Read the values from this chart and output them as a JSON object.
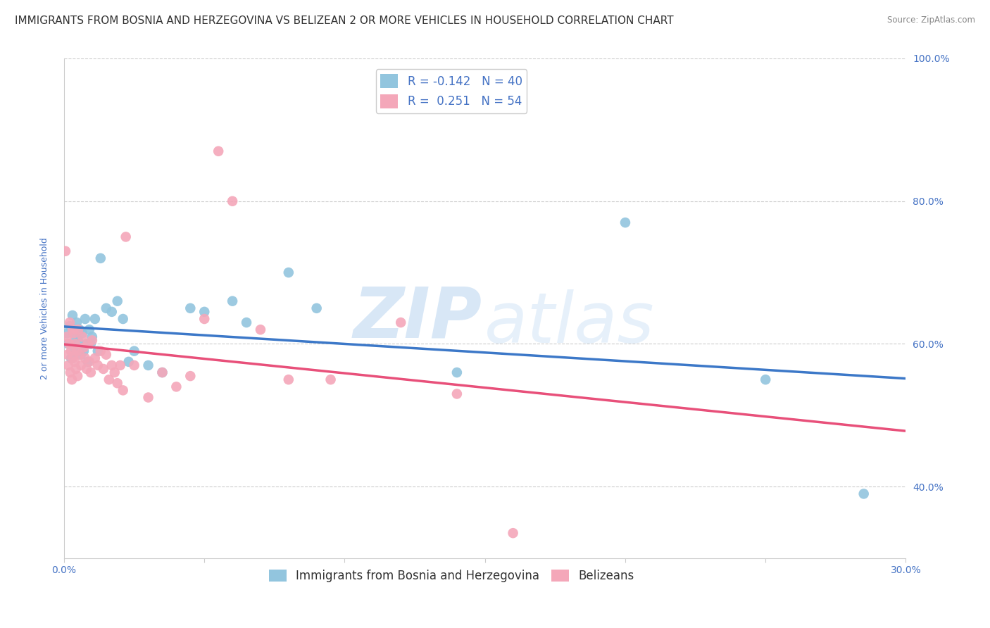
{
  "title": "IMMIGRANTS FROM BOSNIA AND HERZEGOVINA VS BELIZEAN 2 OR MORE VEHICLES IN HOUSEHOLD CORRELATION CHART",
  "source": "Source: ZipAtlas.com",
  "ylabel_label": "2 or more Vehicles in Household",
  "legend_bosnia_label": "Immigrants from Bosnia and Herzegovina",
  "legend_belize_label": "Belizeans",
  "R_bosnia": -0.142,
  "N_bosnia": 40,
  "R_belize": 0.251,
  "N_belize": 54,
  "blue_color": "#92c5de",
  "pink_color": "#f4a7b9",
  "blue_line_color": "#3c78c8",
  "pink_line_color": "#e8507a",
  "dashed_line_color": "#e8507a",
  "xmin": 0.0,
  "xmax": 30.0,
  "ymin": 30.0,
  "ymax": 100.0,
  "ytick_positions": [
    40.0,
    60.0,
    80.0,
    100.0
  ],
  "xtick_positions": [
    0.0,
    5.0,
    10.0,
    15.0,
    20.0,
    25.0,
    30.0
  ],
  "blue_scatter": [
    [
      0.1,
      61.5
    ],
    [
      0.15,
      60.0
    ],
    [
      0.2,
      62.5
    ],
    [
      0.25,
      58.0
    ],
    [
      0.3,
      64.0
    ],
    [
      0.35,
      59.5
    ],
    [
      0.4,
      61.0
    ],
    [
      0.45,
      63.0
    ],
    [
      0.5,
      60.5
    ],
    [
      0.55,
      62.0
    ],
    [
      0.6,
      58.5
    ],
    [
      0.65,
      61.5
    ],
    [
      0.7,
      59.0
    ],
    [
      0.75,
      63.5
    ],
    [
      0.8,
      60.0
    ],
    [
      0.85,
      57.5
    ],
    [
      0.9,
      62.0
    ],
    [
      0.95,
      60.0
    ],
    [
      1.0,
      61.0
    ],
    [
      1.1,
      63.5
    ],
    [
      1.2,
      59.0
    ],
    [
      1.3,
      72.0
    ],
    [
      1.5,
      65.0
    ],
    [
      1.7,
      64.5
    ],
    [
      1.9,
      66.0
    ],
    [
      2.1,
      63.5
    ],
    [
      2.3,
      57.5
    ],
    [
      2.5,
      59.0
    ],
    [
      3.0,
      57.0
    ],
    [
      3.5,
      56.0
    ],
    [
      4.5,
      65.0
    ],
    [
      5.0,
      64.5
    ],
    [
      6.0,
      66.0
    ],
    [
      6.5,
      63.0
    ],
    [
      8.0,
      70.0
    ],
    [
      9.0,
      65.0
    ],
    [
      14.0,
      56.0
    ],
    [
      20.0,
      77.0
    ],
    [
      25.0,
      55.0
    ],
    [
      28.5,
      39.0
    ]
  ],
  "pink_scatter": [
    [
      0.05,
      73.0
    ],
    [
      0.1,
      61.0
    ],
    [
      0.12,
      58.5
    ],
    [
      0.15,
      57.0
    ],
    [
      0.18,
      60.0
    ],
    [
      0.2,
      63.0
    ],
    [
      0.22,
      56.0
    ],
    [
      0.25,
      59.0
    ],
    [
      0.28,
      55.0
    ],
    [
      0.3,
      62.0
    ],
    [
      0.32,
      58.0
    ],
    [
      0.35,
      61.5
    ],
    [
      0.38,
      57.5
    ],
    [
      0.4,
      60.0
    ],
    [
      0.42,
      56.5
    ],
    [
      0.45,
      59.0
    ],
    [
      0.48,
      55.5
    ],
    [
      0.5,
      62.0
    ],
    [
      0.55,
      58.5
    ],
    [
      0.6,
      57.0
    ],
    [
      0.65,
      61.0
    ],
    [
      0.7,
      59.5
    ],
    [
      0.75,
      58.0
    ],
    [
      0.8,
      56.5
    ],
    [
      0.85,
      60.0
    ],
    [
      0.9,
      57.5
    ],
    [
      0.95,
      56.0
    ],
    [
      1.0,
      60.5
    ],
    [
      1.1,
      58.0
    ],
    [
      1.2,
      57.0
    ],
    [
      1.3,
      59.0
    ],
    [
      1.4,
      56.5
    ],
    [
      1.5,
      58.5
    ],
    [
      1.6,
      55.0
    ],
    [
      1.7,
      57.0
    ],
    [
      1.8,
      56.0
    ],
    [
      1.9,
      54.5
    ],
    [
      2.0,
      57.0
    ],
    [
      2.1,
      53.5
    ],
    [
      2.2,
      75.0
    ],
    [
      2.5,
      57.0
    ],
    [
      3.0,
      52.5
    ],
    [
      3.5,
      56.0
    ],
    [
      4.0,
      54.0
    ],
    [
      4.5,
      55.5
    ],
    [
      5.0,
      63.5
    ],
    [
      5.5,
      87.0
    ],
    [
      6.0,
      80.0
    ],
    [
      7.0,
      62.0
    ],
    [
      8.0,
      55.0
    ],
    [
      9.5,
      55.0
    ],
    [
      12.0,
      63.0
    ],
    [
      14.0,
      53.0
    ],
    [
      16.0,
      33.5
    ]
  ],
  "watermark_zip": "ZIP",
  "watermark_atlas": "atlas",
  "grid_color": "#cccccc",
  "grid_linestyle": "--",
  "background_color": "#ffffff",
  "title_fontsize": 11,
  "axis_label_fontsize": 9,
  "tick_label_fontsize": 10,
  "legend_fontsize": 12
}
